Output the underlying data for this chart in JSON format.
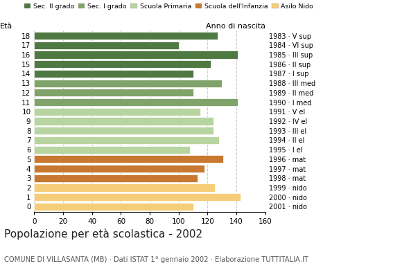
{
  "ages": [
    18,
    17,
    16,
    15,
    14,
    13,
    12,
    11,
    10,
    9,
    8,
    7,
    6,
    5,
    4,
    3,
    2,
    1,
    0
  ],
  "values": [
    127,
    100,
    141,
    122,
    110,
    130,
    110,
    141,
    115,
    124,
    124,
    128,
    108,
    131,
    118,
    113,
    125,
    143,
    110
  ],
  "right_labels": [
    "1983 · V sup",
    "1984 · VI sup",
    "1985 · III sup",
    "1986 · II sup",
    "1987 · I sup",
    "1988 · III med",
    "1989 · II med",
    "1990 · I med",
    "1991 · V el",
    "1992 · IV el",
    "1993 · III el",
    "1994 · II el",
    "1995 · I el",
    "1996 · mat",
    "1997 · mat",
    "1998 · mat",
    "1999 · nido",
    "2000 · nido",
    "2001 · nido"
  ],
  "bar_colors": [
    "#4f7942",
    "#4f7942",
    "#4f7942",
    "#4f7942",
    "#4f7942",
    "#7fa36a",
    "#7fa36a",
    "#7fa36a",
    "#b8d4a0",
    "#b8d4a0",
    "#b8d4a0",
    "#b8d4a0",
    "#b8d4a0",
    "#c87830",
    "#c87830",
    "#c87830",
    "#f5cc78",
    "#f5cc78",
    "#f5cc78"
  ],
  "legend_labels": [
    "Sec. II grado",
    "Sec. I grado",
    "Scuola Primaria",
    "Scuola dell'Infanzia",
    "Asilo Nido"
  ],
  "legend_colors": [
    "#4f7942",
    "#7fa36a",
    "#b8d4a0",
    "#c87830",
    "#f5cc78"
  ],
  "title": "Popolazione per età scolastica - 2002",
  "subtitle": "COMUNE DI VILLASANTA (MB) · Dati ISTAT 1° gennaio 2002 · Elaborazione TUTTITALIA.IT",
  "ylabel_left": "Età",
  "ylabel_right": "Anno di nascita",
  "xlim": [
    0,
    160
  ],
  "xticks": [
    0,
    20,
    40,
    60,
    80,
    100,
    120,
    140,
    160
  ],
  "background_color": "#ffffff",
  "grid_color": "#cccccc"
}
